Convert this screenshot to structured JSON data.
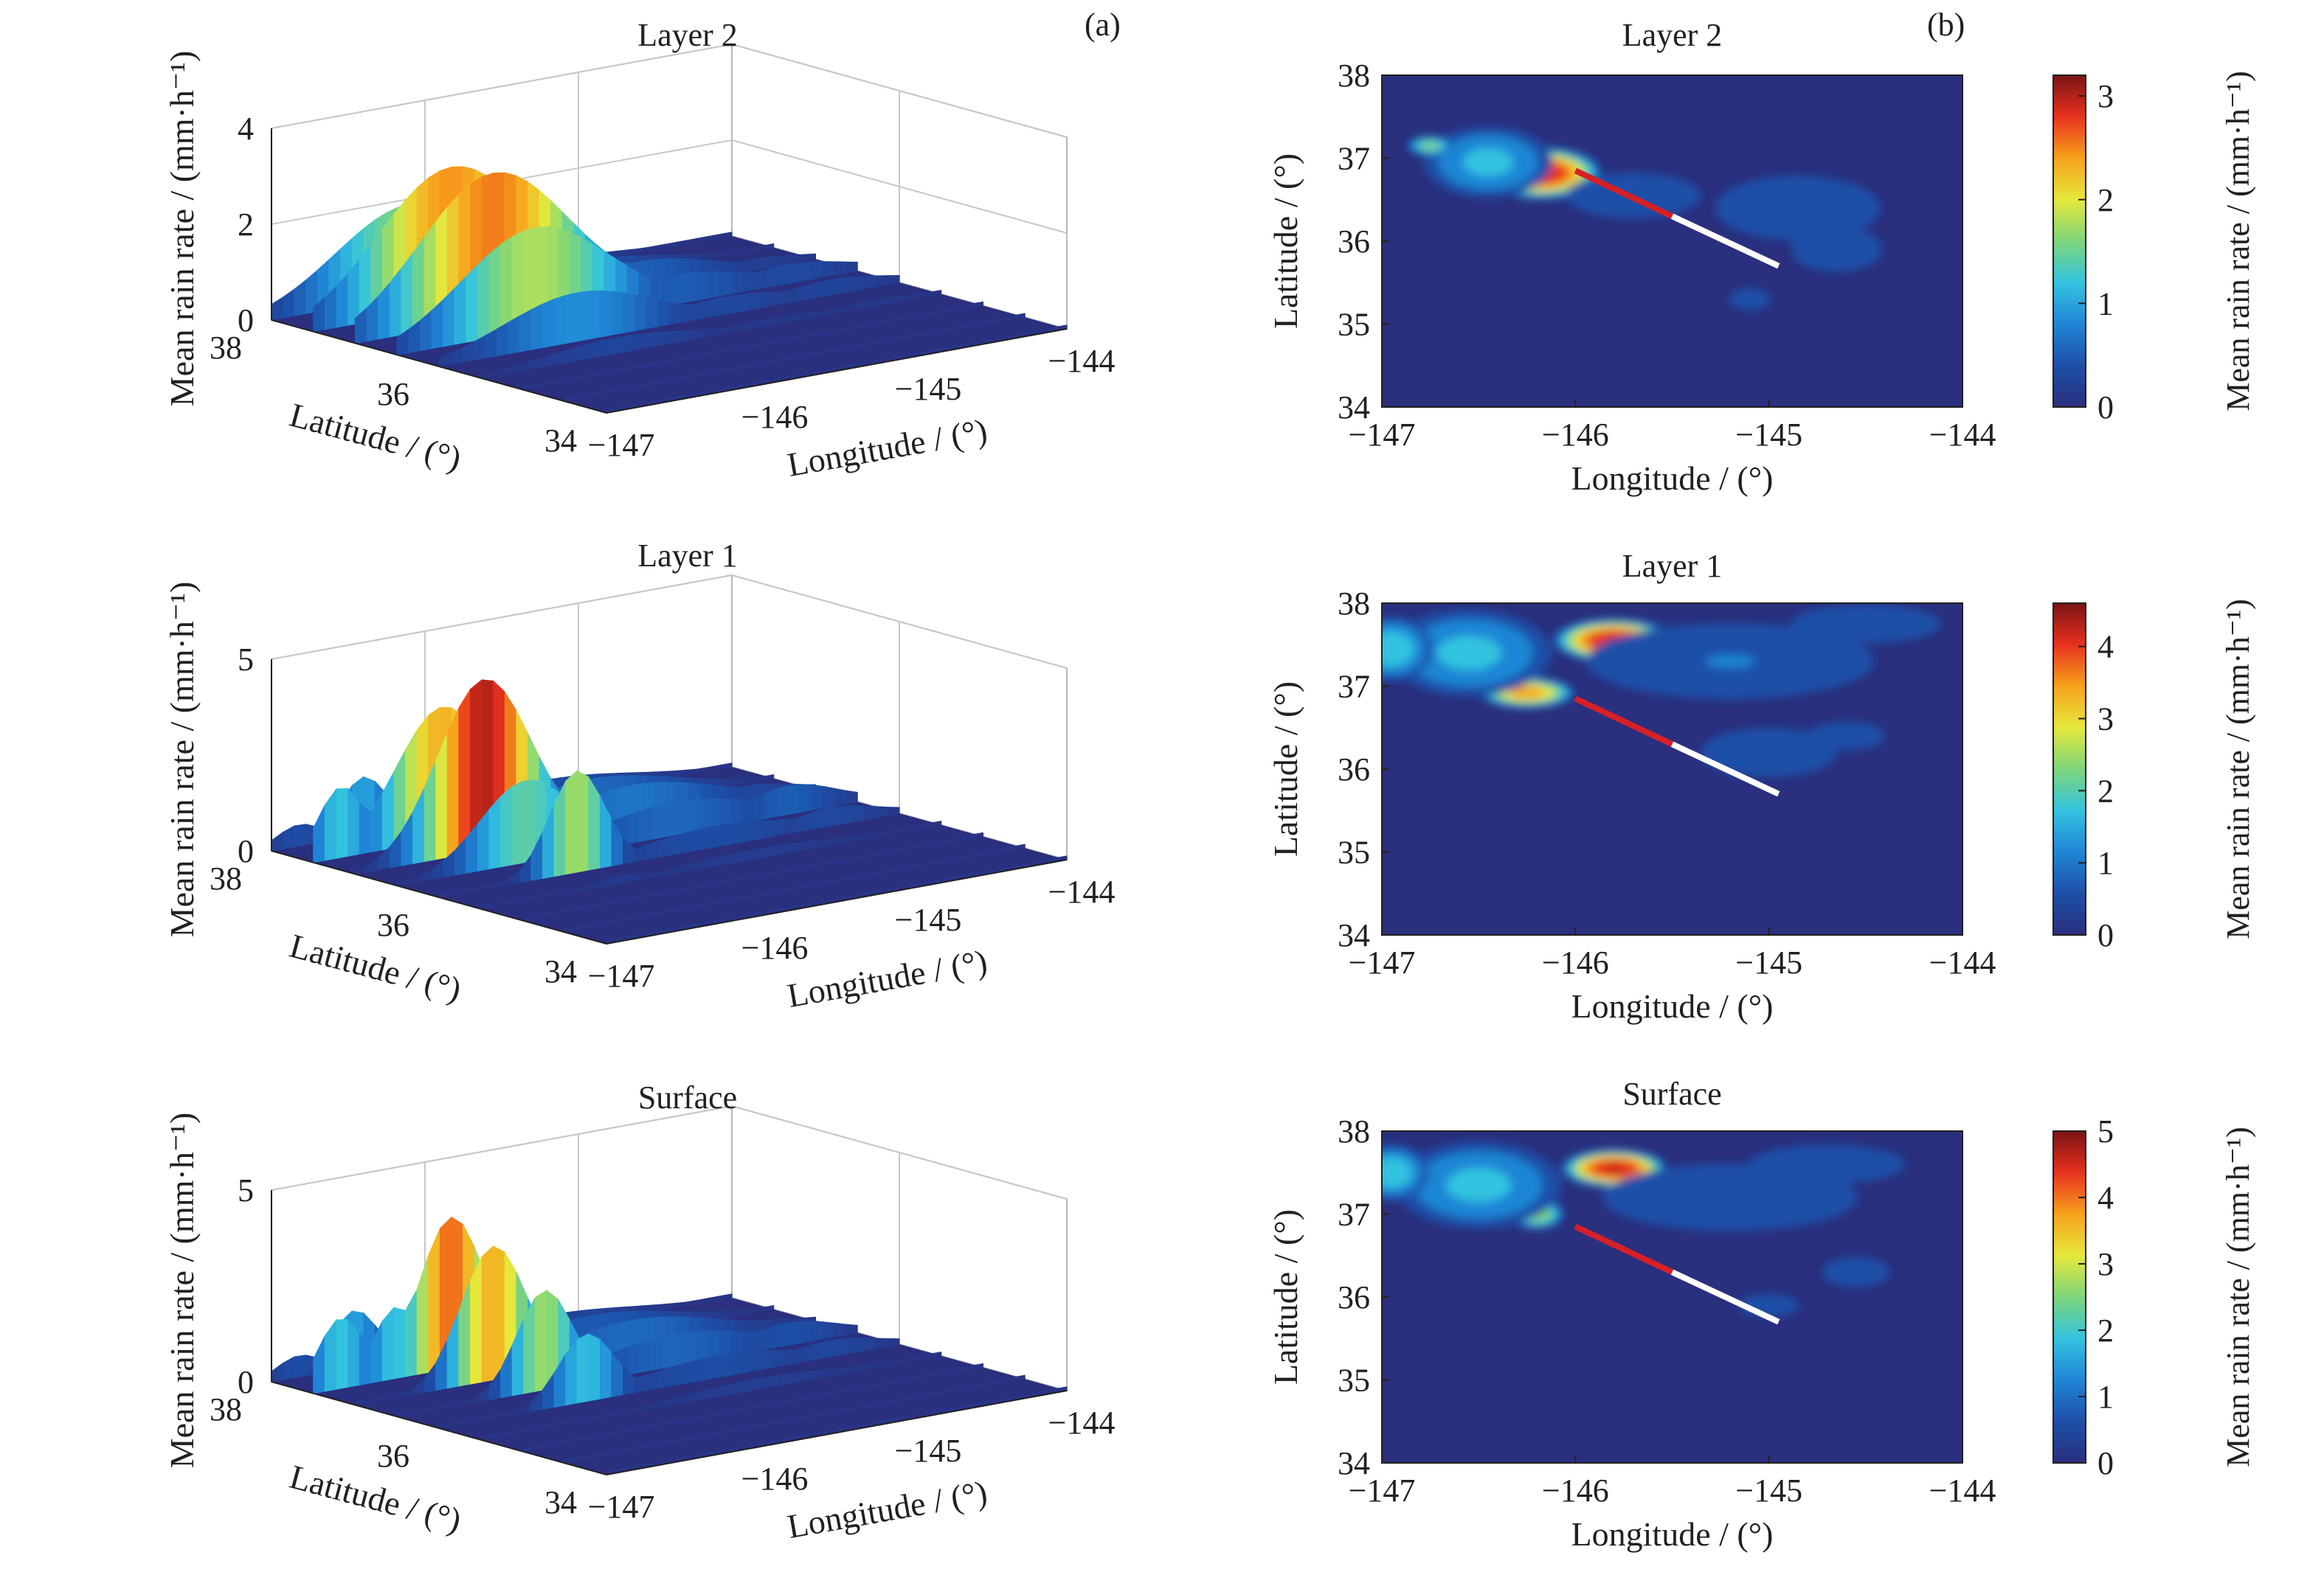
{
  "figure": {
    "panel_a_label": "(a)",
    "panel_b_label": "(b)"
  },
  "colormap": [
    "#2a2f7e",
    "#1d4fa8",
    "#1f86d6",
    "#33c3e0",
    "#7ed67b",
    "#e6e83b",
    "#f7a11c",
    "#e8311d",
    "#7a1313"
  ],
  "track": {
    "red_color": "#d62027",
    "white_color": "#ffffff"
  },
  "chart_data": [
    {
      "type": "surface3d",
      "panel": "a",
      "title": "Layer 2",
      "xlabel": "Longitude / (°)",
      "ylabel": "Latitude / (°)",
      "zlabel": "Mean rain rate / (mm·h⁻¹)",
      "xlim": [
        -147,
        -144
      ],
      "ylim": [
        34,
        38
      ],
      "zlim": [
        0,
        4
      ],
      "xticks": [
        "−147",
        "−146",
        "−145",
        "−144"
      ],
      "yticks": [
        "38",
        "36",
        "34"
      ],
      "zticks": [
        "0",
        "2",
        "4"
      ],
      "peak_value": 3.2,
      "grid": true,
      "colorbar": false
    },
    {
      "type": "surface3d",
      "panel": "a",
      "title": "Layer 1",
      "xlabel": "Longitude / (°)",
      "ylabel": "Latitude / (°)",
      "zlabel": "Mean rain rate / (mm·h⁻¹)",
      "xlim": [
        -147,
        -144
      ],
      "ylim": [
        34,
        38
      ],
      "zlim": [
        0,
        5
      ],
      "xticks": [
        "−147",
        "−146",
        "−145",
        "−144"
      ],
      "yticks": [
        "38",
        "36",
        "34"
      ],
      "zticks": [
        "0",
        "5"
      ],
      "peak_value": 4.6,
      "grid": true,
      "colorbar": false
    },
    {
      "type": "surface3d",
      "panel": "a",
      "title": "Surface",
      "xlabel": "Longitude / (°)",
      "ylabel": "Latitude / (°)",
      "zlabel": "Mean rain rate / (mm·h⁻¹)",
      "xlim": [
        -147,
        -144
      ],
      "ylim": [
        34,
        38
      ],
      "zlim": [
        0,
        5
      ],
      "xticks": [
        "−147",
        "−146",
        "−145",
        "−144"
      ],
      "yticks": [
        "38",
        "36",
        "34"
      ],
      "zticks": [
        "0",
        "5"
      ],
      "peak_value": 5.0,
      "grid": true,
      "colorbar": false
    },
    {
      "type": "contour",
      "panel": "b",
      "title": "Layer 2",
      "xlabel": "Longitude / (°)",
      "ylabel": "Latitude / (°)",
      "xlim": [
        -147,
        -144
      ],
      "ylim": [
        34,
        38
      ],
      "xticks": [
        "−147",
        "−146",
        "−145",
        "−144"
      ],
      "yticks": [
        "34",
        "35",
        "36",
        "37",
        "38"
      ],
      "colorbar_label": "Mean rain rate / (mm·h⁻¹)",
      "colorbar_range": [
        0,
        3.2
      ],
      "colorbar_ticks": [
        "0",
        "1",
        "2",
        "3"
      ],
      "max_value": 3.2,
      "track_red": [
        [
          -146.0,
          36.85
        ],
        [
          -145.5,
          36.3
        ]
      ],
      "track_white": [
        [
          -145.5,
          36.3
        ],
        [
          -144.95,
          35.7
        ]
      ]
    },
    {
      "type": "contour",
      "panel": "b",
      "title": "Layer 1",
      "xlabel": "Longitude / (°)",
      "ylabel": "Latitude / (°)",
      "xlim": [
        -147,
        -144
      ],
      "ylim": [
        34,
        38
      ],
      "xticks": [
        "−147",
        "−146",
        "−145",
        "−144"
      ],
      "yticks": [
        "34",
        "35",
        "36",
        "37",
        "38"
      ],
      "colorbar_label": "Mean rain rate / (mm·h⁻¹)",
      "colorbar_range": [
        0,
        4.6
      ],
      "colorbar_ticks": [
        "0",
        "1",
        "2",
        "3",
        "4"
      ],
      "max_value": 4.6,
      "track_red": [
        [
          -146.0,
          36.85
        ],
        [
          -145.5,
          36.3
        ]
      ],
      "track_white": [
        [
          -145.5,
          36.3
        ],
        [
          -144.95,
          35.7
        ]
      ]
    },
    {
      "type": "contour",
      "panel": "b",
      "title": "Surface",
      "xlabel": "Longitude / (°)",
      "ylabel": "Latitude / (°)",
      "xlim": [
        -147,
        -144
      ],
      "ylim": [
        34,
        38
      ],
      "xticks": [
        "−147",
        "−146",
        "−145",
        "−144"
      ],
      "yticks": [
        "34",
        "35",
        "36",
        "37",
        "38"
      ],
      "colorbar_label": "Mean rain rate / (mm·h⁻¹)",
      "colorbar_range": [
        0,
        5
      ],
      "colorbar_ticks": [
        "0",
        "1",
        "2",
        "3",
        "4",
        "5"
      ],
      "max_value": 5.0,
      "track_red": [
        [
          -146.0,
          36.85
        ],
        [
          -145.5,
          36.3
        ]
      ],
      "track_white": [
        [
          -145.5,
          36.3
        ],
        [
          -144.95,
          35.7
        ]
      ]
    }
  ]
}
